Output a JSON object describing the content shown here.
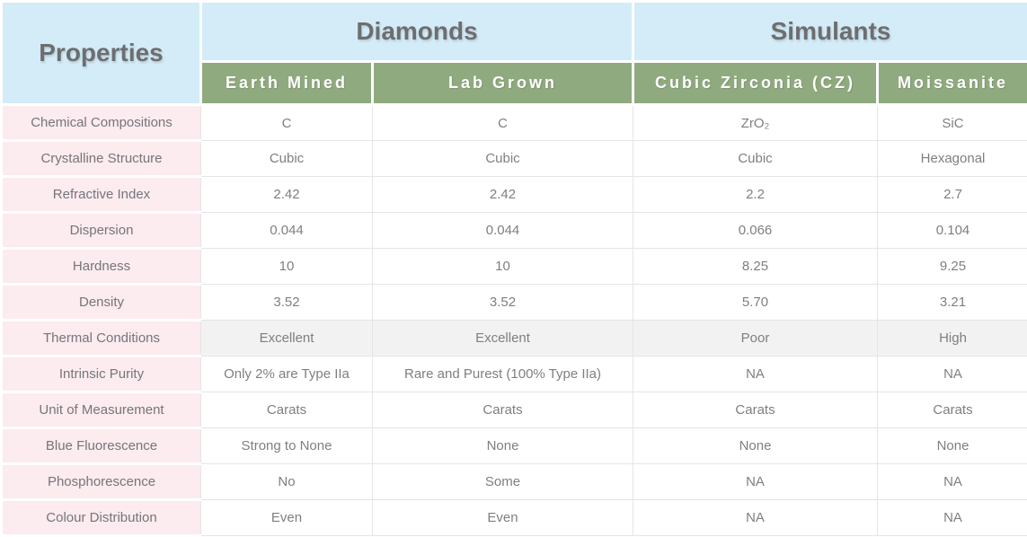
{
  "chart_data": {
    "type": "table",
    "corner_header": "Properties",
    "column_groups": [
      {
        "label": "Diamonds",
        "span": 2
      },
      {
        "label": "Simulants",
        "span": 2
      }
    ],
    "columns": [
      "Earth Mined",
      "Lab Grown",
      "Cubic Zirconia (CZ)",
      "Moissanite"
    ],
    "rows": [
      {
        "property": "Chemical Compositions",
        "values": [
          "C",
          "C",
          "ZrO₂",
          "SiC"
        ],
        "shaded": false
      },
      {
        "property": "Crystalline Structure",
        "values": [
          "Cubic",
          "Cubic",
          "Cubic",
          "Hexagonal"
        ],
        "shaded": false
      },
      {
        "property": "Refractive Index",
        "values": [
          "2.42",
          "2.42",
          "2.2",
          "2.7"
        ],
        "shaded": false
      },
      {
        "property": "Dispersion",
        "values": [
          "0.044",
          "0.044",
          "0.066",
          "0.104"
        ],
        "shaded": false
      },
      {
        "property": "Hardness",
        "values": [
          "10",
          "10",
          "8.25",
          "9.25"
        ],
        "shaded": false
      },
      {
        "property": "Density",
        "values": [
          "3.52",
          "3.52",
          "5.70",
          "3.21"
        ],
        "shaded": false
      },
      {
        "property": "Thermal Conditions",
        "values": [
          "Excellent",
          "Excellent",
          "Poor",
          "High"
        ],
        "shaded": true
      },
      {
        "property": "Intrinsic Purity",
        "values": [
          "Only 2% are Type IIa",
          "Rare and Purest (100% Type IIa)",
          "NA",
          "NA"
        ],
        "shaded": false
      },
      {
        "property": "Unit of Measurement",
        "values": [
          "Carats",
          "Carats",
          "Carats",
          "Carats"
        ],
        "shaded": false
      },
      {
        "property": "Blue Fluorescence",
        "values": [
          "Strong to None",
          "None",
          "None",
          "None"
        ],
        "shaded": false
      },
      {
        "property": "Phosphorescence",
        "values": [
          "No",
          "Some",
          "NA",
          "NA"
        ],
        "shaded": false
      },
      {
        "property": "Colour Distribution",
        "values": [
          "Even",
          "Even",
          "NA",
          "NA"
        ],
        "shaded": false
      }
    ],
    "colors": {
      "header_blue": "#d3ecf8",
      "header_green": "#90aa7f",
      "label_pink": "#fcebef",
      "shaded_row": "#f2f2f2",
      "header_text": "#6d6e71",
      "subheader_text": "#ffffff",
      "body_text": "#7e7f82",
      "border": "#e4e5e6"
    }
  }
}
